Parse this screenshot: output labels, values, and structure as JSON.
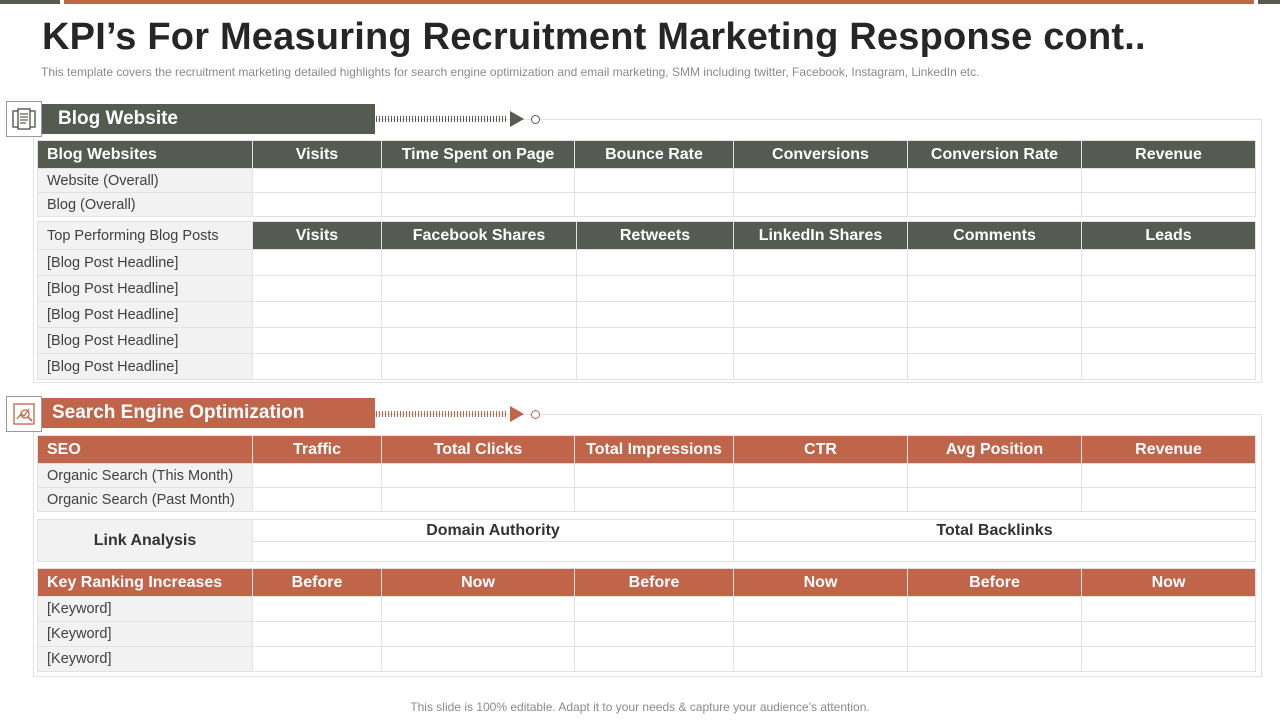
{
  "page": {
    "title": "KPI’s For Measuring Recruitment Marketing Response cont..",
    "subtitle": "This template covers the recruitment marketing detailed highlights for search engine optimization and email marketing, SMM including twitter, Facebook, Instagram, LinkedIn etc.",
    "footer": "This slide is 100% editable. Adapt it to your needs & capture your audience’s attention."
  },
  "colors": {
    "gray": "#565b52",
    "orange": "#c0654a",
    "label_bg": "#f2f2f2",
    "border": "#e2e2e2"
  },
  "blog": {
    "heading": "Blog Website",
    "icon": "document-icon",
    "websites_table": {
      "headers": [
        "Blog Websites",
        "Visits",
        "Time Spent on Page",
        "Bounce Rate",
        "Conversions",
        "Conversion Rate",
        "Revenue"
      ],
      "rows": [
        "Website (Overall)",
        "Blog (Overall)"
      ]
    },
    "posts_table": {
      "label": "Top Performing Blog Posts",
      "headers": [
        "Visits",
        "Facebook Shares",
        "Retweets",
        "LinkedIn Shares",
        "Comments",
        "Leads"
      ],
      "rows": [
        "[Blog Post Headline]",
        "[Blog Post Headline]",
        "[Blog Post Headline]",
        "[Blog Post Headline]",
        "[Blog Post Headline]"
      ]
    }
  },
  "seo": {
    "heading": "Search Engine Optimization",
    "icon": "search-chart-icon",
    "seo_table": {
      "headers": [
        "SEO",
        "Traffic",
        "Total Clicks",
        "Total Impressions",
        "CTR",
        "Avg Position",
        "Revenue"
      ],
      "rows": [
        "Organic Search (This Month)",
        "Organic Search (Past Month)"
      ]
    },
    "link_analysis": {
      "label": "Link Analysis",
      "columns": [
        "Domain Authority",
        "Total Backlinks"
      ]
    },
    "ranking_table": {
      "headers": [
        "Key Ranking Increases",
        "Before",
        "Now",
        "Before",
        "Now",
        "Before",
        "Now"
      ],
      "rows": [
        "[Keyword]",
        "[Keyword]",
        "[Keyword]"
      ]
    }
  }
}
